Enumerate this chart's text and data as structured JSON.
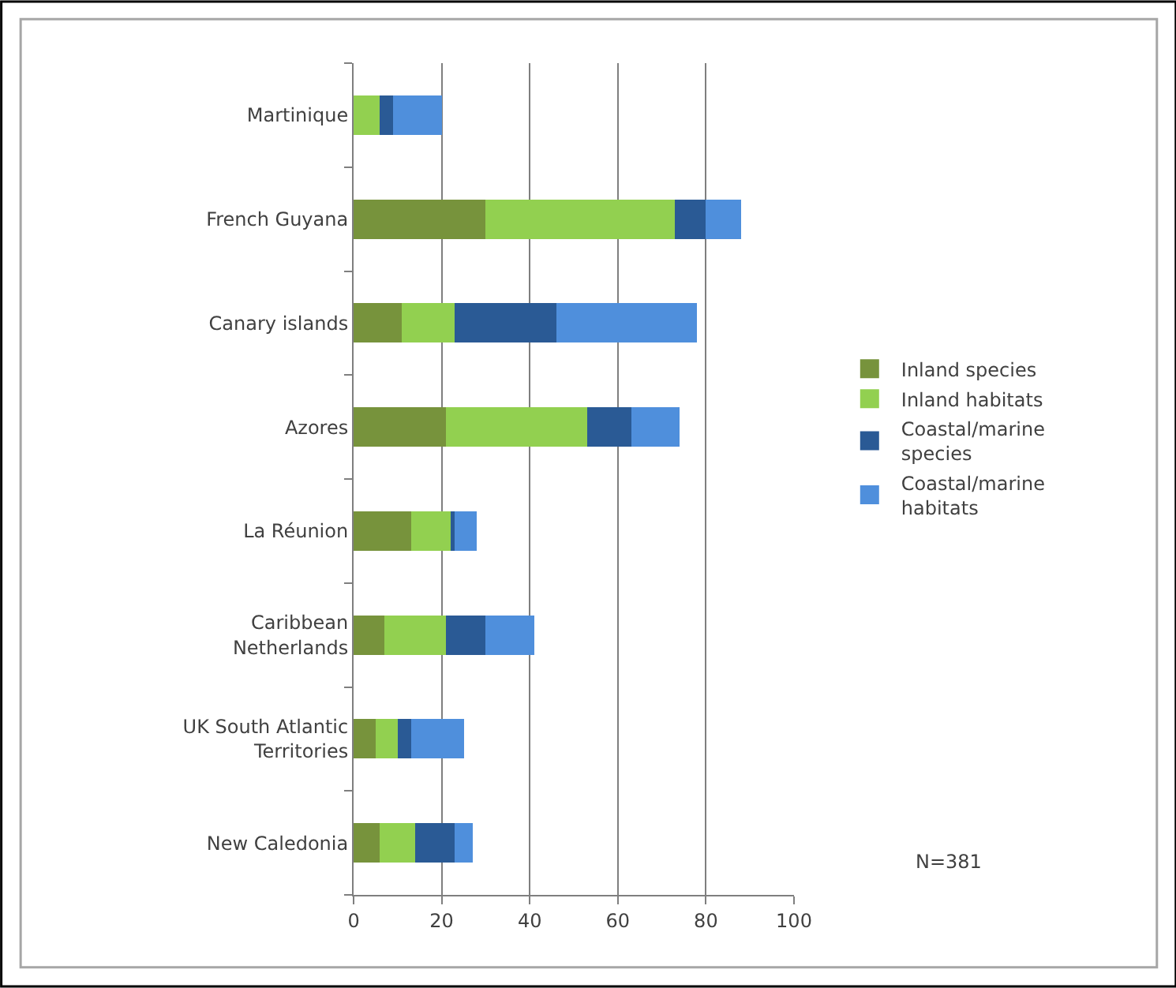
{
  "chart_data": {
    "type": "bar",
    "orientation": "horizontal",
    "stacked": true,
    "categories": [
      "Martinique",
      "French Guyana",
      "Canary islands",
      "Azores",
      "La Réunion",
      "Caribbean Netherlands",
      "UK South Atlantic Territories",
      "New Caledonia"
    ],
    "series": [
      {
        "name": "Inland species",
        "color": "#77933c",
        "values": [
          0,
          30,
          11,
          21,
          13,
          7,
          5,
          6
        ]
      },
      {
        "name": "Inland habitats",
        "color": "#92d050",
        "values": [
          6,
          43,
          12,
          32,
          9,
          14,
          5,
          8
        ]
      },
      {
        "name": "Coastal/marine species",
        "color": "#2a5a95",
        "values": [
          3,
          7,
          23,
          10,
          1,
          9,
          3,
          9
        ]
      },
      {
        "name": "Coastal/marine habitats",
        "color": "#4f8fdc",
        "values": [
          11,
          8,
          32,
          11,
          5,
          11,
          12,
          4
        ]
      }
    ],
    "xlim": [
      0,
      100
    ],
    "xticks": [
      0,
      20,
      40,
      60,
      80,
      100
    ],
    "grid": "x",
    "legend": "right",
    "annotations": [
      "N=381"
    ]
  }
}
